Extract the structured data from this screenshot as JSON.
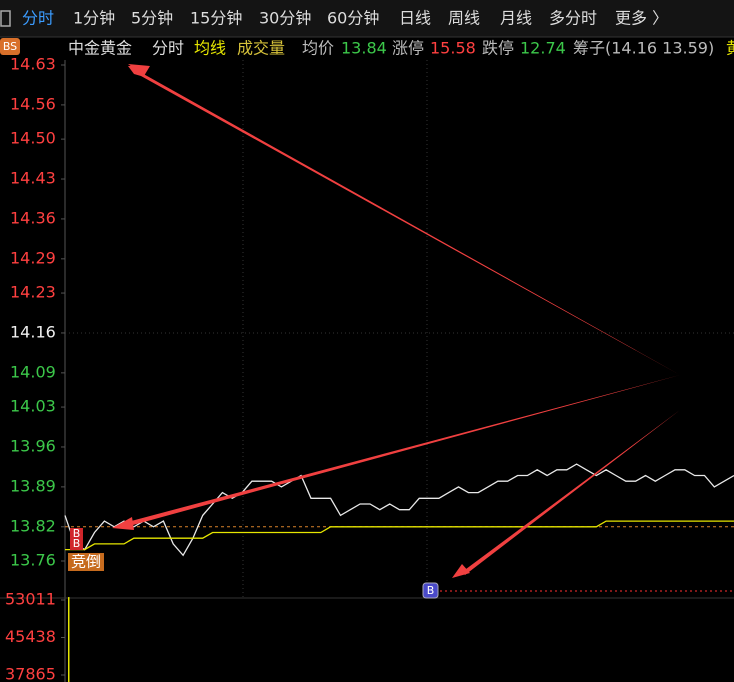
{
  "toolbar": {
    "tabs": [
      "分时",
      "1分钟",
      "5分钟",
      "15分钟",
      "30分钟",
      "60分钟",
      "日线",
      "周线",
      "月线",
      "多分时",
      "更多 〉"
    ],
    "active": 0
  },
  "badge": "BS",
  "info": {
    "name": "中金黄金",
    "period": "分时",
    "avg_line": "均线",
    "volume": "成交量",
    "avg_price_label": "均价",
    "avg_price": 13.84,
    "limit_up_label": "涨停",
    "limit_up": 15.58,
    "limit_down_label": "跌停",
    "limit_down": 12.74,
    "chip": "筹子(14.16 13.59)",
    "more": "黄"
  },
  "markers": [
    "B",
    "B",
    "竞倒",
    "B"
  ],
  "chart_data": {
    "type": "line",
    "ylim": [
      13.76,
      14.63
    ],
    "yticks": [
      14.63,
      14.56,
      {
        "value": 14.5,
        "label": "14.50"
      },
      14.43,
      14.36,
      14.29,
      14.23,
      14.16,
      14.09,
      14.03,
      13.96,
      13.89,
      13.82,
      13.76
    ],
    "prev_close": 14.16,
    "dashed_level": 13.82,
    "series": [
      {
        "color": "#e8e8e8",
        "values": [
          13.84,
          13.79,
          13.78,
          13.81,
          13.83,
          13.82,
          13.83,
          13.82,
          13.83,
          13.82,
          13.83,
          13.79,
          13.77,
          13.8,
          13.84,
          13.86,
          13.88,
          13.87,
          13.88,
          13.9,
          13.9,
          13.9,
          13.89,
          13.9,
          13.91,
          13.87,
          13.87,
          13.87,
          13.84,
          13.85,
          13.86,
          13.86,
          13.85,
          13.86,
          13.85,
          13.85,
          13.87,
          13.87,
          13.87,
          13.88,
          13.89,
          13.88,
          13.88,
          13.89,
          13.9,
          13.9,
          13.91,
          13.91,
          13.92,
          13.91,
          13.92,
          13.92,
          13.93,
          13.92,
          13.91,
          13.92,
          13.91,
          13.9,
          13.9,
          13.91,
          13.9,
          13.91,
          13.92,
          13.92,
          13.91,
          13.91,
          13.89,
          13.9,
          13.91
        ]
      },
      {
        "color": "#e6e600",
        "values": [
          13.78,
          13.78,
          13.78,
          13.79,
          13.79,
          13.79,
          13.79,
          13.8,
          13.8,
          13.8,
          13.8,
          13.8,
          13.8,
          13.8,
          13.8,
          13.81,
          13.81,
          13.81,
          13.81,
          13.81,
          13.81,
          13.81,
          13.81,
          13.81,
          13.81,
          13.81,
          13.81,
          13.82,
          13.82,
          13.82,
          13.82,
          13.82,
          13.82,
          13.82,
          13.82,
          13.82,
          13.82,
          13.82,
          13.82,
          13.82,
          13.82,
          13.82,
          13.82,
          13.82,
          13.82,
          13.82,
          13.82,
          13.82,
          13.82,
          13.82,
          13.82,
          13.82,
          13.82,
          13.82,
          13.82,
          13.83,
          13.83,
          13.83,
          13.83,
          13.83,
          13.83,
          13.83,
          13.83,
          13.83,
          13.83,
          13.83,
          13.83,
          13.83,
          13.83
        ]
      }
    ],
    "volume": {
      "color": "#e6e600",
      "ylim": [
        36450,
        55030
      ],
      "yticks": [
        53011,
        45438,
        37865
      ],
      "values": [
        53600
      ]
    }
  }
}
